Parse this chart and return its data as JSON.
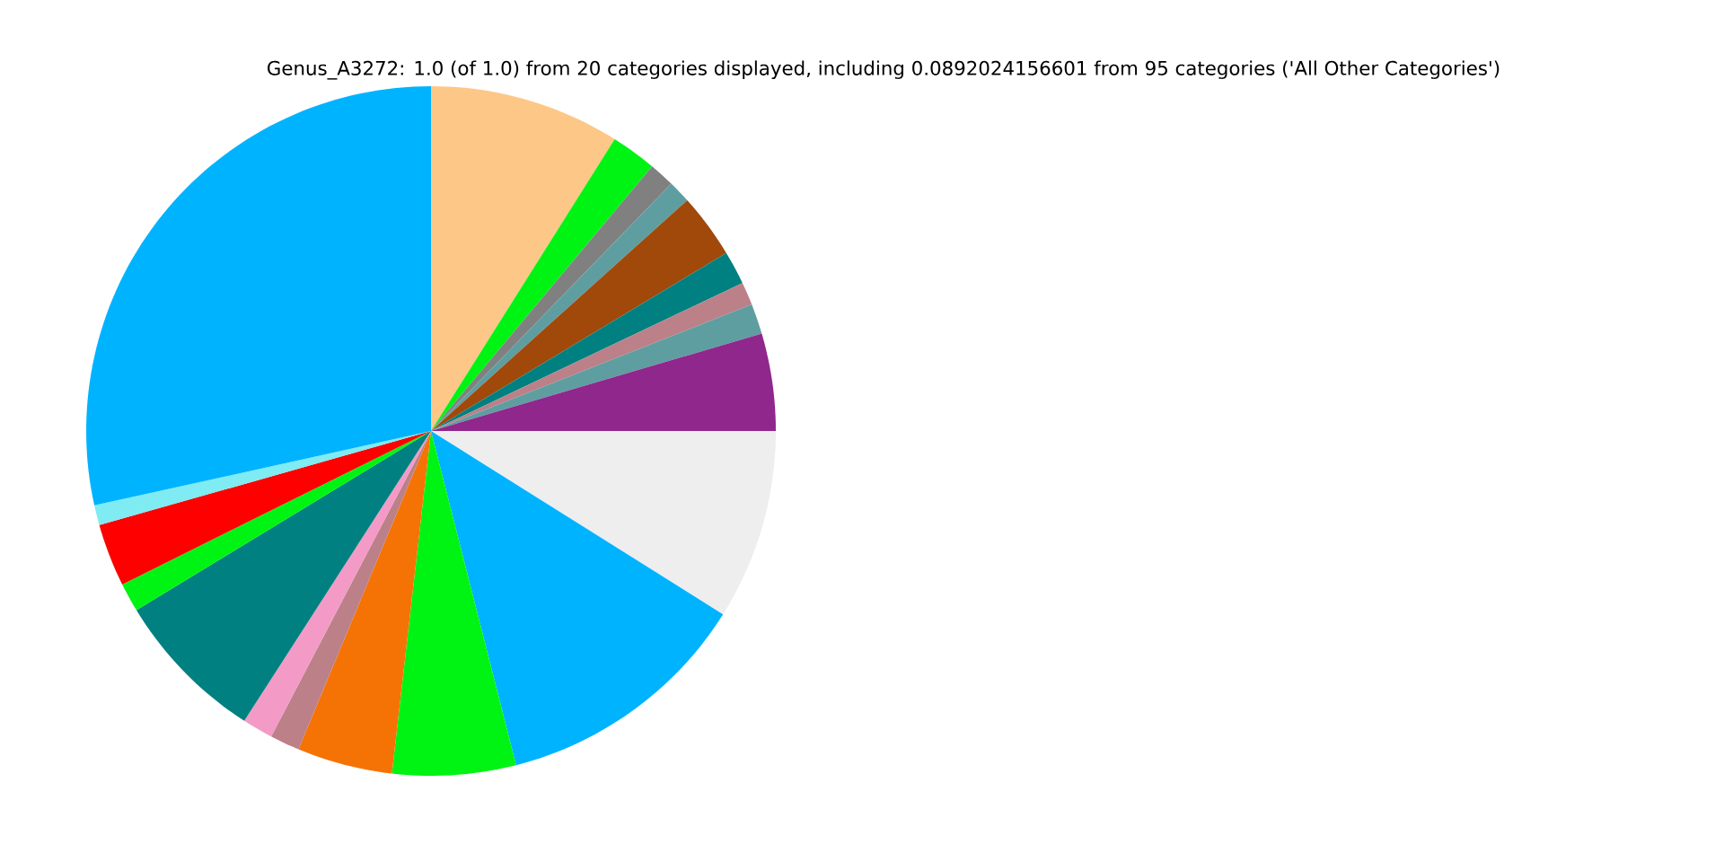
{
  "chart_data": {
    "type": "pie",
    "title": "Genus_A3272: 1.0 (of 1.0) from 20 categories displayed, including 0.0892024156601 from 95 categories ('All Other Categories')",
    "categories": [
      null,
      null,
      null,
      null,
      null,
      null,
      null,
      null,
      null,
      null,
      null,
      null,
      null,
      null,
      null,
      null,
      null,
      null,
      null,
      null
    ],
    "values": [
      8.94,
      2.14,
      1.19,
      1.06,
      3.03,
      1.58,
      1.08,
      1.42,
      4.56,
      8.92,
      12.11,
      5.78,
      4.47,
      1.39,
      1.44,
      7.19,
      1.36,
      2.94,
      0.94,
      28.46
    ],
    "colors": [
      "#fdc788",
      "#00f413",
      "#808080",
      "#5f9ea0",
      "#a0490a",
      "#008080",
      "#bc8088",
      "#5f9ea0",
      "#90278c",
      "#eeeeee",
      "#00b3ff",
      "#00f413",
      "#f57304",
      "#bc8088",
      "#f39ac6",
      "#008080",
      "#00f413",
      "#ff0000",
      "#7febf2",
      "#00b3ff"
    ]
  }
}
